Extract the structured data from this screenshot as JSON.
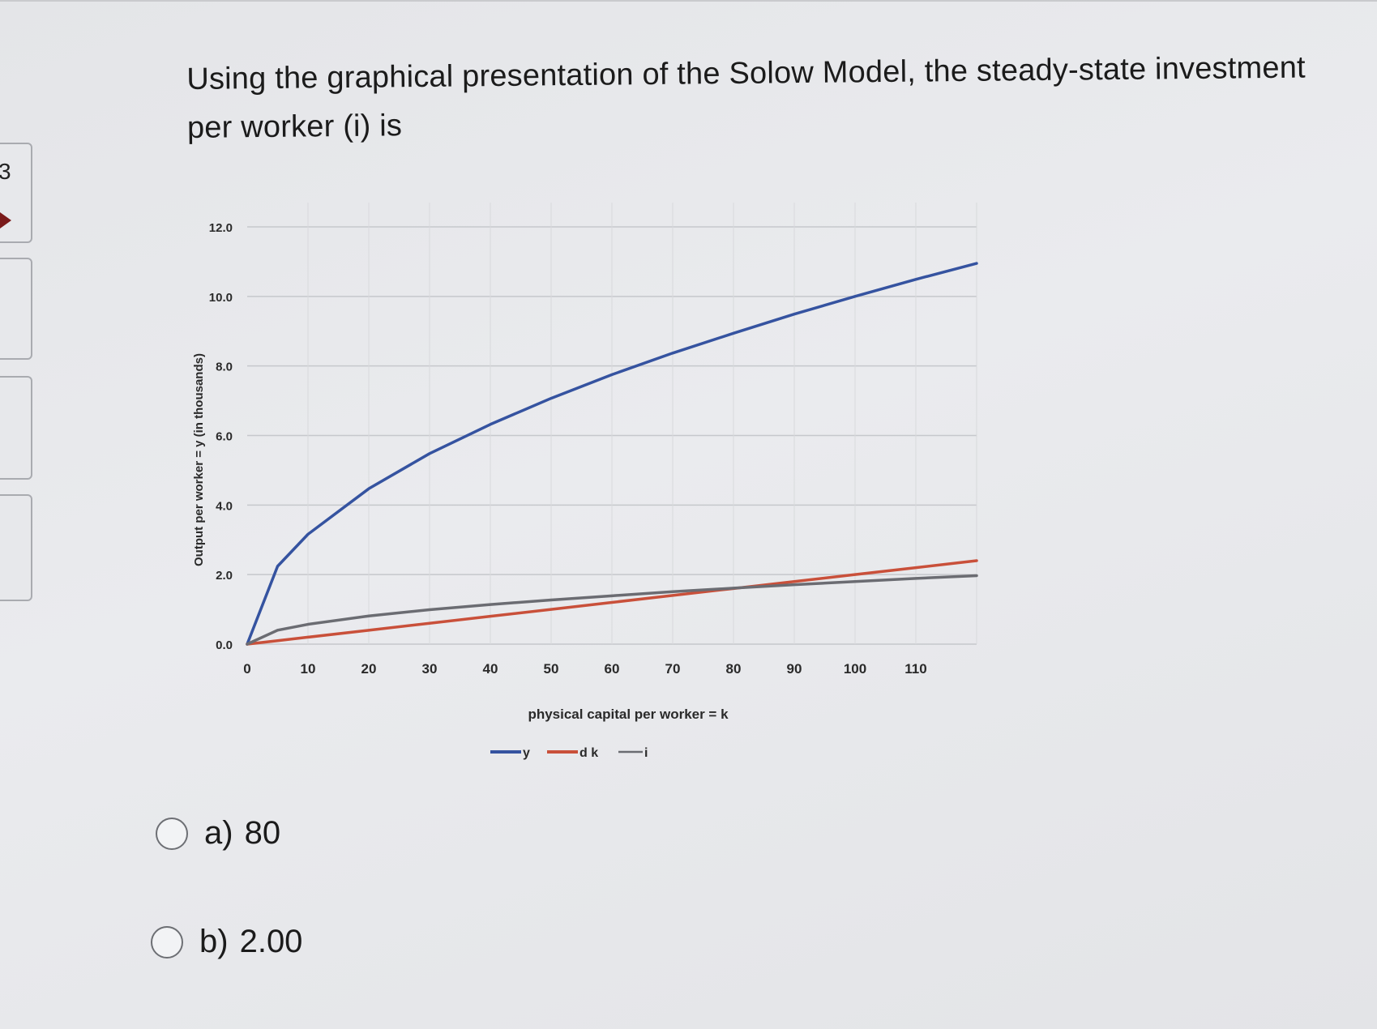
{
  "edge": {
    "glyph": "3"
  },
  "question": {
    "text": "Using the graphical presentation of the Solow Model, the steady-state investment per worker (i) is"
  },
  "chart_data": {
    "type": "line",
    "xlabel": "physical capital per worker = k",
    "ylabel": "Output per worker = y (in thousands)",
    "x_ticks": [
      "0",
      "10",
      "20",
      "30",
      "40",
      "50",
      "60",
      "70",
      "80",
      "90",
      "100",
      "110"
    ],
    "y_ticks": [
      "0.0",
      "2.0",
      "4.0",
      "6.0",
      "8.0",
      "10.0",
      "12.0"
    ],
    "xlim": [
      0,
      120
    ],
    "ylim": [
      0,
      12
    ],
    "grid": true,
    "legend_position": "bottom",
    "x": [
      0,
      5,
      10,
      20,
      30,
      40,
      50,
      60,
      70,
      80,
      90,
      100,
      110,
      120
    ],
    "series": [
      {
        "name": "y",
        "color": "#3553a0",
        "values": [
          0,
          2.24,
          3.16,
          4.47,
          5.48,
          6.32,
          7.07,
          7.75,
          8.37,
          8.94,
          9.49,
          10.0,
          10.49,
          10.95
        ]
      },
      {
        "name": "d k",
        "color": "#c9503a",
        "values": [
          0,
          0.1,
          0.2,
          0.4,
          0.6,
          0.8,
          1.0,
          1.2,
          1.4,
          1.6,
          1.8,
          2.0,
          2.2,
          2.4
        ]
      },
      {
        "name": "i",
        "color": "#6b6c72",
        "values": [
          0,
          0.4,
          0.57,
          0.81,
          0.99,
          1.14,
          1.27,
          1.39,
          1.51,
          1.61,
          1.71,
          1.8,
          1.89,
          1.97
        ]
      }
    ]
  },
  "options": [
    {
      "label": "a)",
      "value": "80"
    },
    {
      "label": "b)",
      "value": "2.00"
    }
  ]
}
